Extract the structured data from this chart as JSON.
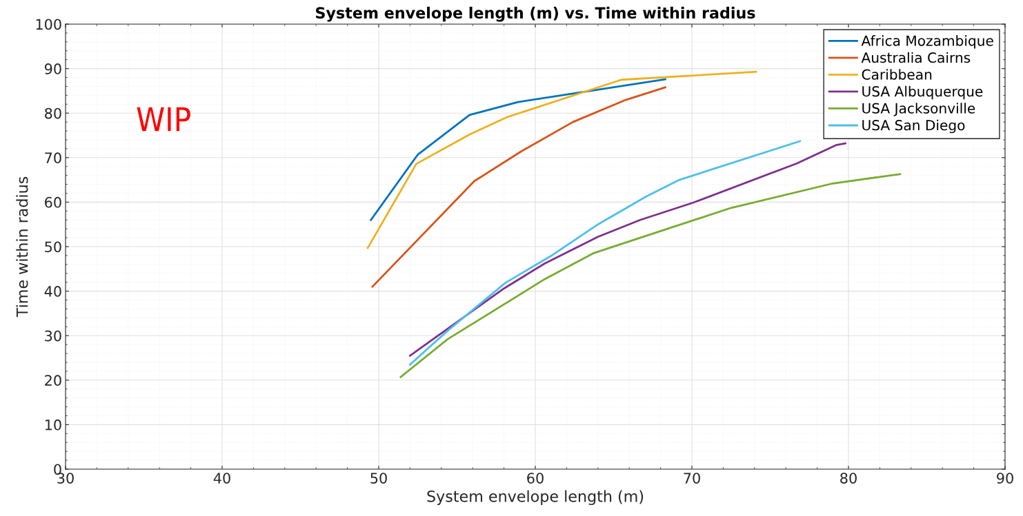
{
  "chart_data": {
    "type": "line",
    "title": "System envelope length (m) vs. Time within radius",
    "xlabel": "System envelope length (m)",
    "ylabel": "Time within radius",
    "xlim": [
      30,
      90
    ],
    "xticks": [
      30,
      40,
      50,
      60,
      70,
      80,
      90
    ],
    "ylim": [
      0,
      100
    ],
    "yticks": [
      0,
      10,
      20,
      30,
      40,
      50,
      60,
      70,
      80,
      90,
      100
    ],
    "grid": true,
    "legend": "top right",
    "line_style": "solid",
    "marker": "none",
    "annotations": [
      "WIP"
    ],
    "series": [
      {
        "name": "Africa Mozambique",
        "color": "#0072bd",
        "x": [
          49.5,
          52.5,
          55.8,
          58.9,
          68.3
        ],
        "values": [
          56.0,
          70.7,
          79.6,
          82.5,
          87.6
        ]
      },
      {
        "name": "Australia Cairns",
        "color": "#d95319",
        "x": [
          49.6,
          56.1,
          59.1,
          62.4,
          65.8,
          68.3
        ],
        "values": [
          41.0,
          64.7,
          71.4,
          78.0,
          83.0,
          85.8
        ]
      },
      {
        "name": "Caribbean",
        "color": "#edb120",
        "x": [
          49.3,
          52.4,
          55.8,
          58.2,
          65.5,
          74.1
        ],
        "values": [
          49.7,
          68.6,
          75.2,
          79.1,
          87.5,
          89.3
        ]
      },
      {
        "name": "USA Albuquerque",
        "color": "#7e2f8e",
        "x": [
          52.0,
          58.0,
          60.6,
          64.0,
          66.7,
          70.1,
          76.7,
          79.2,
          79.8
        ],
        "values": [
          25.5,
          40.6,
          46.2,
          52.2,
          56.0,
          59.9,
          68.7,
          72.8,
          73.2
        ]
      },
      {
        "name": "USA Jacksonville",
        "color": "#77ac30",
        "x": [
          51.4,
          54.4,
          60.6,
          63.7,
          72.5,
          79.0,
          83.3
        ],
        "values": [
          20.7,
          29.2,
          42.7,
          48.5,
          58.7,
          64.2,
          66.3
        ]
      },
      {
        "name": "USA San Diego",
        "color": "#4dbeee",
        "x": [
          52.0,
          54.4,
          58.1,
          61.0,
          64.0,
          67.1,
          69.2,
          76.9
        ],
        "values": [
          23.5,
          31.1,
          41.9,
          47.9,
          55.0,
          61.3,
          65.0,
          73.7
        ]
      }
    ]
  }
}
